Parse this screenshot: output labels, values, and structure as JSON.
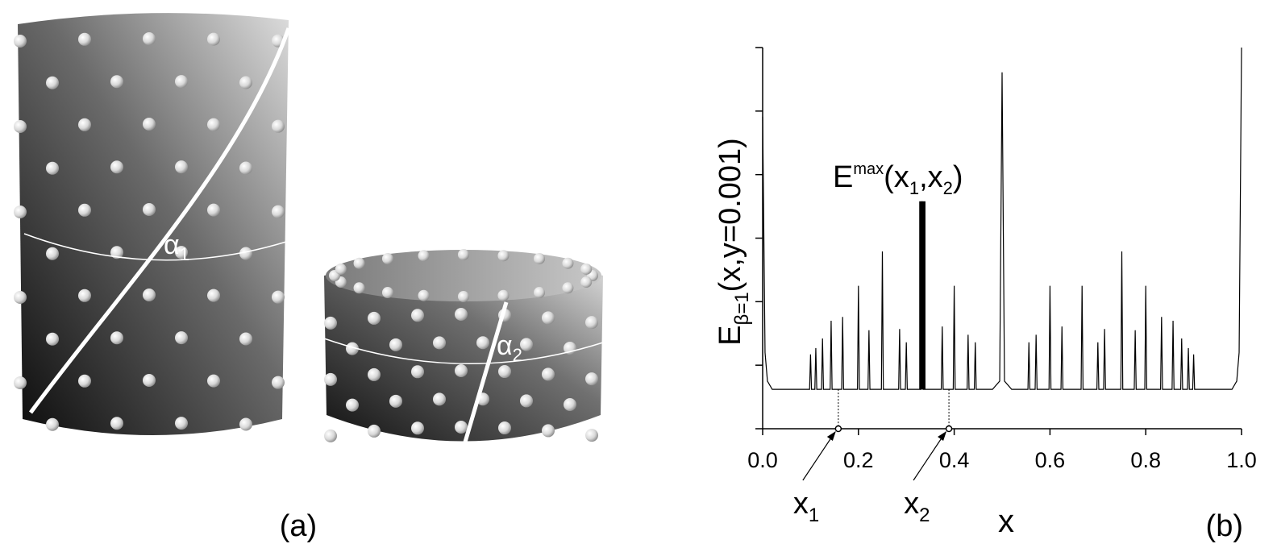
{
  "panel_a": {
    "label": "(a)",
    "alpha1": {
      "main": "α",
      "sub": "1"
    },
    "alpha2": {
      "main": "α",
      "sub": "2"
    }
  },
  "chart_data": {
    "type": "line",
    "label": "(b)",
    "y_label": {
      "main": "E",
      "sub": "β=1",
      "rest": "(x,y=0.001)"
    },
    "x_label": "x",
    "annotation": {
      "parts": [
        "E",
        "max",
        "(x",
        "1",
        ",x",
        "2",
        ")"
      ]
    },
    "xlim": [
      0,
      1
    ],
    "ylim": [
      0,
      6
    ],
    "xticks": [
      {
        "value": 0,
        "label": "0.0"
      },
      0.2,
      0.4,
      0.6,
      0.8,
      {
        "value": 1,
        "label": "1.0"
      }
    ],
    "yticks": [
      0,
      1,
      2,
      3,
      4,
      5,
      6
    ],
    "color": "#000000",
    "x": [
      0,
      0.005,
      0.01,
      0.02,
      0.098,
      0.1,
      0.102,
      0.109,
      0.111,
      0.113,
      0.123,
      0.125,
      0.127,
      0.141,
      0.143,
      0.145,
      0.165,
      0.167,
      0.169,
      0.198,
      0.2,
      0.202,
      0.22,
      0.222,
      0.224,
      0.248,
      0.25,
      0.252,
      0.284,
      0.286,
      0.288,
      0.298,
      0.3,
      0.302,
      0.331,
      0.333,
      0.335,
      0.373,
      0.375,
      0.377,
      0.398,
      0.4,
      0.402,
      0.427,
      0.429,
      0.431,
      0.442,
      0.444,
      0.446,
      0.48,
      0.495,
      0.5,
      0.505,
      0.52,
      0.554,
      0.556,
      0.558,
      0.569,
      0.571,
      0.573,
      0.598,
      0.6,
      0.602,
      0.623,
      0.625,
      0.627,
      0.665,
      0.667,
      0.669,
      0.698,
      0.7,
      0.702,
      0.712,
      0.714,
      0.716,
      0.748,
      0.75,
      0.752,
      0.776,
      0.778,
      0.78,
      0.798,
      0.8,
      0.802,
      0.831,
      0.833,
      0.835,
      0.855,
      0.857,
      0.859,
      0.873,
      0.875,
      0.877,
      0.887,
      0.889,
      0.891,
      0.898,
      0.9,
      0.902,
      0.98,
      0.99,
      0.995,
      1
    ],
    "values": [
      4.91,
      1.2,
      0.75,
      0.62,
      0.62,
      1.17,
      0.62,
      0.62,
      1.27,
      0.62,
      0.62,
      1.42,
      0.62,
      0.62,
      1.7,
      0.62,
      0.62,
      1.76,
      0.62,
      0.62,
      2.25,
      0.62,
      0.62,
      1.55,
      0.62,
      0.62,
      2.79,
      0.62,
      0.62,
      1.57,
      0.62,
      0.62,
      1.36,
      0.62,
      0.62,
      3.58,
      0.62,
      0.62,
      1.61,
      0.62,
      0.62,
      2.25,
      0.62,
      0.62,
      1.48,
      0.62,
      0.62,
      1.36,
      0.62,
      0.62,
      0.75,
      5.61,
      0.75,
      0.62,
      0.62,
      1.36,
      0.62,
      0.62,
      1.48,
      0.62,
      0.62,
      2.25,
      0.62,
      0.62,
      1.61,
      0.62,
      0.62,
      2.25,
      0.62,
      0.62,
      1.36,
      0.62,
      0.62,
      1.57,
      0.62,
      0.62,
      2.79,
      0.62,
      0.62,
      1.55,
      0.62,
      0.62,
      2.25,
      0.62,
      0.62,
      1.76,
      0.62,
      0.62,
      1.7,
      0.62,
      0.62,
      1.42,
      0.62,
      0.62,
      1.27,
      0.62,
      0.62,
      1.17,
      0.62,
      0.62,
      0.75,
      1.2,
      6
    ],
    "highlight": {
      "x0": 0.327,
      "x1": 0.34,
      "value": 3.58,
      "base": 0.62
    },
    "markers": [
      {
        "main": "x",
        "sub": "1",
        "x": 0.158
      },
      {
        "main": "x",
        "sub": "2",
        "x": 0.389
      }
    ]
  }
}
